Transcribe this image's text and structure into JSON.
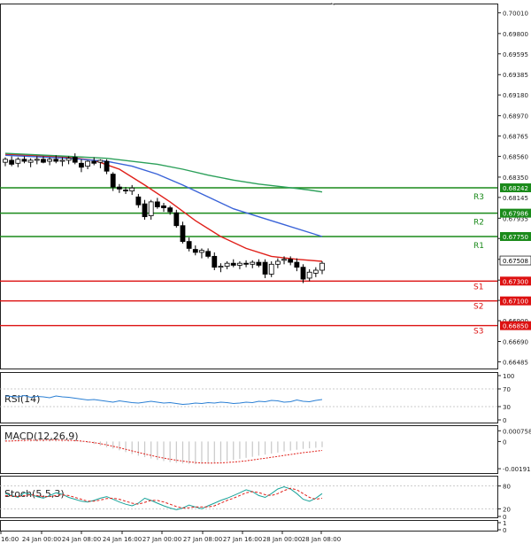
{
  "chart_data": [
    {
      "type": "candlestick",
      "x_ticks": [
        "16:00",
        "24 Jan 00:00",
        "24 Jan 08:00",
        "24 Jan 16:00",
        "27 Jan 00:00",
        "27 Jan 08:00",
        "27 Jan 16:00",
        "28 Jan 00:00",
        "28 Jan 08:00"
      ],
      "y_ticks": [
        "0.70010",
        "0.69800",
        "0.69595",
        "0.69385",
        "0.69180",
        "0.68970",
        "0.68765",
        "0.68560",
        "0.68350",
        "0.68145",
        "0.67935",
        "0.67730",
        "0.67520",
        "0.67310",
        "0.67105",
        "0.66900",
        "0.66690",
        "0.66485"
      ],
      "ylim": [
        0.66435,
        0.70085
      ],
      "current_price": "0.67508",
      "levels": [
        {
          "name": "R3",
          "value": 0.68242,
          "label": "0.68242",
          "color": "#1a8a1a"
        },
        {
          "name": "R2",
          "value": 0.67986,
          "label": "0.67986",
          "color": "#1a8a1a"
        },
        {
          "name": "R1",
          "value": 0.6775,
          "label": "0.67750",
          "color": "#1a8a1a"
        },
        {
          "name": "S1",
          "value": 0.673,
          "label": "0.67300",
          "color": "#dd1111"
        },
        {
          "name": "S2",
          "value": 0.671,
          "label": "0.67100",
          "color": "#dd1111"
        },
        {
          "name": "S3",
          "value": 0.6685,
          "label": "0.66850",
          "color": "#dd1111"
        }
      ],
      "candles": [
        [
          0.685,
          0.6855,
          0.6846,
          0.6853
        ],
        [
          0.6852,
          0.6856,
          0.6846,
          0.6848
        ],
        [
          0.6849,
          0.6855,
          0.6845,
          0.6853
        ],
        [
          0.6853,
          0.6856,
          0.6849,
          0.6851
        ],
        [
          0.685,
          0.6854,
          0.6845,
          0.6852
        ],
        [
          0.6852,
          0.6856,
          0.6848,
          0.6853
        ],
        [
          0.6853,
          0.6856,
          0.6849,
          0.685
        ],
        [
          0.6851,
          0.6855,
          0.6847,
          0.6853
        ],
        [
          0.6853,
          0.6857,
          0.6849,
          0.6851
        ],
        [
          0.6851,
          0.6855,
          0.6846,
          0.6852
        ],
        [
          0.6852,
          0.6856,
          0.6848,
          0.6854
        ],
        [
          0.6855,
          0.6859,
          0.6848,
          0.685
        ],
        [
          0.6849,
          0.6853,
          0.684,
          0.6845
        ],
        [
          0.6846,
          0.6852,
          0.6843,
          0.6851
        ],
        [
          0.6851,
          0.6855,
          0.6847,
          0.6849
        ],
        [
          0.685,
          0.6853,
          0.6844,
          0.6852
        ],
        [
          0.6851,
          0.6853,
          0.6838,
          0.6841
        ],
        [
          0.6838,
          0.684,
          0.6821,
          0.6825
        ],
        [
          0.6825,
          0.6828,
          0.6819,
          0.6823
        ],
        [
          0.6822,
          0.6825,
          0.6818,
          0.6821
        ],
        [
          0.6821,
          0.6827,
          0.6817,
          0.6824
        ],
        [
          0.6815,
          0.6818,
          0.6804,
          0.6807
        ],
        [
          0.6808,
          0.6812,
          0.6792,
          0.6795
        ],
        [
          0.6796,
          0.6812,
          0.6792,
          0.681
        ],
        [
          0.681,
          0.6814,
          0.6803,
          0.6805
        ],
        [
          0.6806,
          0.6809,
          0.68,
          0.6804
        ],
        [
          0.6804,
          0.6806,
          0.6797,
          0.68
        ],
        [
          0.6799,
          0.6802,
          0.6784,
          0.6786
        ],
        [
          0.6786,
          0.679,
          0.6768,
          0.677
        ],
        [
          0.677,
          0.6774,
          0.676,
          0.6763
        ],
        [
          0.6762,
          0.6766,
          0.6756,
          0.6759
        ],
        [
          0.6759,
          0.6763,
          0.6753,
          0.6761
        ],
        [
          0.676,
          0.6763,
          0.6753,
          0.6755
        ],
        [
          0.6755,
          0.6759,
          0.6741,
          0.6744
        ],
        [
          0.6744,
          0.6748,
          0.6739,
          0.6745
        ],
        [
          0.6745,
          0.675,
          0.6742,
          0.6748
        ],
        [
          0.6748,
          0.6752,
          0.6744,
          0.6746
        ],
        [
          0.6746,
          0.675,
          0.6742,
          0.6748
        ],
        [
          0.6748,
          0.6751,
          0.6744,
          0.6747
        ],
        [
          0.6747,
          0.6751,
          0.6743,
          0.6749
        ],
        [
          0.6749,
          0.6752,
          0.6744,
          0.6746
        ],
        [
          0.6749,
          0.6752,
          0.6733,
          0.6737
        ],
        [
          0.6737,
          0.675,
          0.6734,
          0.6747
        ],
        [
          0.6747,
          0.6753,
          0.6743,
          0.675
        ],
        [
          0.6751,
          0.6755,
          0.6747,
          0.6752
        ],
        [
          0.6752,
          0.6755,
          0.6746,
          0.6749
        ],
        [
          0.6749,
          0.6753,
          0.674,
          0.6744
        ],
        [
          0.6744,
          0.6747,
          0.6728,
          0.6732
        ],
        [
          0.6733,
          0.6742,
          0.673,
          0.6739
        ],
        [
          0.6738,
          0.6744,
          0.6734,
          0.6741
        ],
        [
          0.6741,
          0.675,
          0.6737,
          0.6748
        ]
      ],
      "moving_averages": [
        {
          "color": "#e0201a",
          "points": [
            [
              0,
              0.6858
            ],
            [
              10,
              0.6855
            ],
            [
              14,
              0.6852
            ],
            [
              18,
              0.6843
            ],
            [
              22,
              0.6827
            ],
            [
              26,
              0.681
            ],
            [
              30,
              0.6791
            ],
            [
              34,
              0.6775
            ],
            [
              38,
              0.6763
            ],
            [
              42,
              0.6755
            ],
            [
              46,
              0.6752
            ],
            [
              50,
              0.675
            ]
          ]
        },
        {
          "color": "#3a63d8",
          "points": [
            [
              0,
              0.6857
            ],
            [
              10,
              0.6854
            ],
            [
              16,
              0.6851
            ],
            [
              20,
              0.6846
            ],
            [
              24,
              0.6838
            ],
            [
              28,
              0.6827
            ],
            [
              32,
              0.6815
            ],
            [
              36,
              0.6803
            ],
            [
              40,
              0.6795
            ],
            [
              44,
              0.6787
            ],
            [
              48,
              0.6779
            ],
            [
              50,
              0.6775
            ]
          ]
        },
        {
          "color": "#2ca05a",
          "points": [
            [
              0,
              0.6859
            ],
            [
              10,
              0.6856
            ],
            [
              16,
              0.6854
            ],
            [
              20,
              0.6851
            ],
            [
              24,
              0.6848
            ],
            [
              28,
              0.6843
            ],
            [
              32,
              0.6837
            ],
            [
              36,
              0.6832
            ],
            [
              40,
              0.6828
            ],
            [
              44,
              0.6825
            ],
            [
              48,
              0.6822
            ],
            [
              50,
              0.682
            ]
          ]
        }
      ]
    },
    {
      "type": "line",
      "title": "RSI(14)",
      "y_ticks": [
        "100",
        "70",
        "30",
        "0"
      ],
      "ylim": [
        0,
        100
      ],
      "series": [
        {
          "color": "#2a7fd4",
          "values": [
            54,
            53,
            52,
            55,
            51,
            53,
            52,
            50,
            54,
            52,
            51,
            49,
            47,
            45,
            46,
            44,
            42,
            40,
            43,
            41,
            39,
            38,
            40,
            42,
            40,
            38,
            39,
            37,
            35,
            36,
            38,
            37,
            39,
            38,
            40,
            39,
            37,
            38,
            40,
            39,
            42,
            41,
            44,
            43,
            40,
            41,
            45,
            42,
            41,
            44,
            46
          ]
        }
      ]
    },
    {
      "type": "bar",
      "title": "MACD(12,26,9)",
      "y_ticks": [
        "0.000758",
        "0",
        "-0.001918"
      ],
      "ylim": [
        -0.0021,
        0.0009
      ],
      "values": [
        0.0001,
        8e-05,
        0.0001,
        0.00012,
        0.0001,
        8e-05,
        0.0001,
        0.00012,
        0.0001,
        8e-05,
        6e-05,
        2e-05,
        -5e-05,
        -0.0001,
        -0.00018,
        -0.00028,
        -0.0004,
        -0.0005,
        -0.00062,
        -0.00075,
        -0.00088,
        -0.001,
        -0.0011,
        -0.0012,
        -0.0013,
        -0.00138,
        -0.00145,
        -0.0015,
        -0.00155,
        -0.00158,
        -0.0016,
        -0.00158,
        -0.00155,
        -0.0015,
        -0.00145,
        -0.00138,
        -0.0013,
        -0.00122,
        -0.00115,
        -0.00108,
        -0.001,
        -0.00092,
        -0.00085,
        -0.00078,
        -0.0007,
        -0.00064,
        -0.00058,
        -0.00052,
        -0.00048,
        -0.00044,
        -0.0004
      ],
      "signal": [
        3e-05,
        4e-05,
        6e-05,
        8e-05,
        9e-05,
        9e-05,
        9e-05,
        0.0001,
        0.0001,
        9e-05,
        8e-05,
        6e-05,
        3e-05,
        -2e-05,
        -8e-05,
        -0.00015,
        -0.00024,
        -0.00034,
        -0.00044,
        -0.00055,
        -0.00066,
        -0.00077,
        -0.00088,
        -0.00098,
        -0.00108,
        -0.00117,
        -0.00125,
        -0.00132,
        -0.00138,
        -0.00144,
        -0.00148,
        -0.00151,
        -0.00152,
        -0.00152,
        -0.00151,
        -0.00148,
        -0.00145,
        -0.00141,
        -0.00136,
        -0.0013,
        -0.00124,
        -0.00118,
        -0.00111,
        -0.00105,
        -0.00098,
        -0.00092,
        -0.00085,
        -0.00079,
        -0.00074,
        -0.00068,
        -0.00063
      ],
      "bar_color": "#c8c8c8",
      "signal_color": "#e0201a"
    },
    {
      "type": "line",
      "title": "Stoch(5,5,3)",
      "y_ticks": [
        "80",
        "20",
        "0"
      ],
      "ylim": [
        0,
        100
      ],
      "series": [
        {
          "color": "#1aa39a",
          "values": [
            60,
            55,
            50,
            62,
            58,
            52,
            48,
            55,
            62,
            58,
            50,
            45,
            40,
            38,
            42,
            48,
            52,
            45,
            38,
            32,
            28,
            35,
            48,
            42,
            35,
            28,
            22,
            18,
            22,
            30,
            25,
            20,
            28,
            35,
            42,
            48,
            55,
            62,
            70,
            65,
            55,
            50,
            60,
            72,
            78,
            72,
            60,
            45,
            40,
            48,
            60
          ]
        },
        {
          "color": "#e0201a",
          "values": [
            55,
            54,
            52,
            55,
            57,
            55,
            52,
            52,
            55,
            57,
            55,
            50,
            45,
            40,
            40,
            43,
            47,
            48,
            45,
            40,
            35,
            32,
            37,
            42,
            42,
            38,
            32,
            26,
            22,
            23,
            25,
            25,
            25,
            28,
            35,
            42,
            48,
            55,
            62,
            65,
            63,
            57,
            55,
            60,
            68,
            74,
            70,
            60,
            50,
            45,
            48
          ]
        }
      ]
    },
    {
      "type": "table",
      "y_ticks": [
        "1",
        "0"
      ]
    }
  ]
}
